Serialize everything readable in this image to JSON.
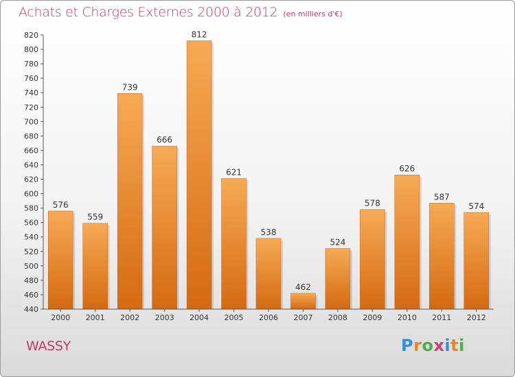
{
  "header": {
    "title": "Achats et Charges Externes 2000 à 2012",
    "unit": "(en milliers d'€)"
  },
  "footer": {
    "place": "WASSY",
    "logo_text": "Proxiti",
    "logo_colors": [
      "#2f8fd8",
      "#e8871e",
      "#48b04a",
      "#d13c7a",
      "#2f8fd8",
      "#e8871e",
      "#48b04a"
    ]
  },
  "colors": {
    "bar_top": "#f7aa55",
    "bar_bottom": "#d46a12",
    "title": "#c03a63",
    "axis_text": "#333333"
  },
  "chart_data": {
    "type": "bar",
    "title": "Achats et Charges Externes 2000 à 2012",
    "categories": [
      "2000",
      "2001",
      "2002",
      "2003",
      "2004",
      "2005",
      "2006",
      "2007",
      "2008",
      "2009",
      "2010",
      "2011",
      "2012"
    ],
    "values": [
      576,
      559,
      739,
      666,
      812,
      621,
      538,
      462,
      524,
      578,
      626,
      587,
      574
    ],
    "ylim": [
      440,
      820
    ],
    "ytick_step": 20,
    "grid": false,
    "legend": "none"
  }
}
